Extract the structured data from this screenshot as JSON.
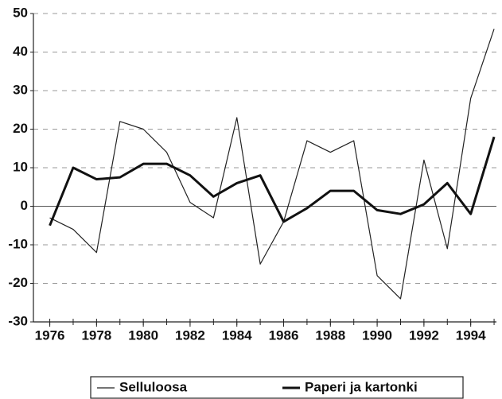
{
  "chart_data": {
    "type": "line",
    "x": [
      1976,
      1977,
      1978,
      1979,
      1980,
      1981,
      1982,
      1983,
      1984,
      1985,
      1986,
      1987,
      1988,
      1989,
      1990,
      1991,
      1992,
      1993,
      1994,
      1995
    ],
    "series": [
      {
        "name": "Selluloosa",
        "color": "#222222",
        "values": [
          -3,
          -6,
          -12,
          22,
          20,
          14,
          1,
          -3,
          23,
          -15,
          -4,
          17,
          14,
          17,
          -18,
          -24,
          12,
          -11,
          28,
          46
        ]
      },
      {
        "name": "Paperi ja kartonki",
        "color": "#111111",
        "values": [
          -5,
          10,
          7,
          7.5,
          11,
          11,
          8,
          2.5,
          6,
          8,
          -4,
          -0.5,
          4,
          4,
          -1,
          -2,
          0.5,
          6,
          -2,
          18
        ]
      }
    ],
    "xlim": [
      1975.3,
      1995.1
    ],
    "xticks": [
      1976,
      1978,
      1980,
      1982,
      1984,
      1986,
      1988,
      1990,
      1992,
      1994
    ],
    "xminorticks": [
      1976,
      1977,
      1978,
      1979,
      1980,
      1981,
      1982,
      1983,
      1984,
      1985,
      1986,
      1987,
      1988,
      1989,
      1990,
      1991,
      1992,
      1993,
      1994,
      1995
    ],
    "ylim": [
      -30,
      50
    ],
    "yticks": [
      -30,
      -20,
      -10,
      0,
      10,
      20,
      30,
      40,
      50
    ],
    "grid": true,
    "legend": "bottom"
  }
}
